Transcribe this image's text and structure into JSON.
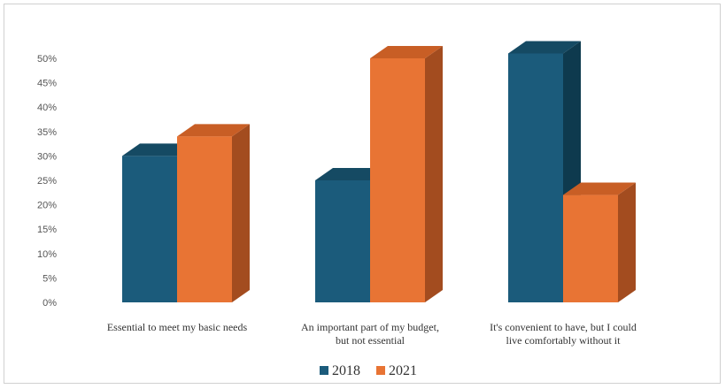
{
  "chart_data": {
    "type": "bar",
    "style": "3d-column",
    "categories": [
      [
        "Essential to meet my basic needs"
      ],
      [
        "An important part of my budget,",
        "but not essential"
      ],
      [
        "It's convenient to have, but I could",
        "live comfortably without it"
      ]
    ],
    "series": [
      {
        "name": "2018",
        "values": [
          30,
          25,
          51
        ],
        "color": "#1b5b7b",
        "top_color": "#154a63",
        "side_color": "#0e3a4e"
      },
      {
        "name": "2021",
        "values": [
          34,
          50,
          22
        ],
        "color": "#e87434",
        "top_color": "#c85e25",
        "side_color": "#a34c1f"
      }
    ],
    "y_ticks": [
      "0%",
      "5%",
      "10%",
      "15%",
      "20%",
      "25%",
      "30%",
      "35%",
      "40%",
      "45%",
      "50%"
    ],
    "ylim": [
      0,
      50
    ],
    "grid": false,
    "legend_position": "bottom"
  }
}
